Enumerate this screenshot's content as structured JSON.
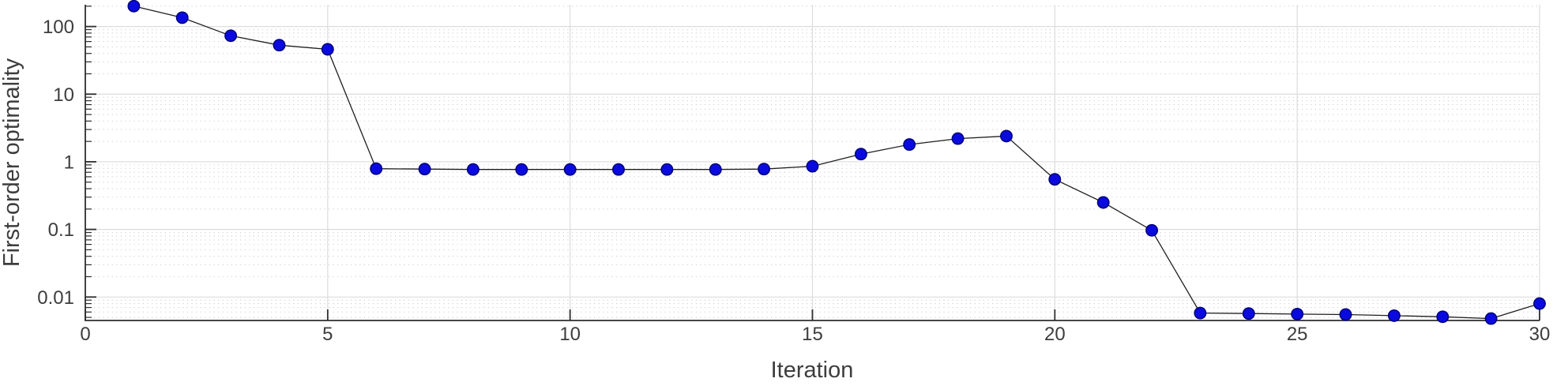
{
  "chart_data": {
    "type": "line",
    "title": "",
    "xlabel": "Iteration",
    "ylabel": "First-order optimality",
    "yscale": "log",
    "xlim": [
      0,
      30
    ],
    "ylim": [
      0.0045,
      210
    ],
    "grid": {
      "major": "solid",
      "minor": "dotted",
      "vertical_minor": false
    },
    "legend": null,
    "xticks": {
      "values": [
        0,
        5,
        10,
        15,
        20,
        25,
        30
      ],
      "labels": [
        "0",
        "5",
        "10",
        "15",
        "20",
        "25",
        "30"
      ]
    },
    "yticks": {
      "values": [
        100,
        10,
        1,
        0.1,
        0.01
      ],
      "labels": [
        "100",
        "10",
        "1",
        "0.1",
        "0.01"
      ]
    },
    "series": [
      {
        "name": "first-order-optimality",
        "marker": "filled-circle",
        "x": [
          1,
          2,
          3,
          4,
          5,
          6,
          7,
          8,
          9,
          10,
          11,
          12,
          13,
          14,
          15,
          16,
          17,
          18,
          19,
          20,
          21,
          22,
          23,
          24,
          25,
          26,
          27,
          28,
          29,
          30
        ],
        "y": [
          200,
          135,
          73,
          53,
          46,
          0.79,
          0.78,
          0.77,
          0.77,
          0.77,
          0.77,
          0.77,
          0.77,
          0.78,
          0.86,
          1.3,
          1.8,
          2.2,
          2.4,
          0.55,
          0.25,
          0.097,
          0.0058,
          0.0057,
          0.0056,
          0.0055,
          0.0053,
          0.0051,
          0.0048,
          0.008
        ]
      }
    ],
    "colors": {
      "marker_fill": "#0a0ae0",
      "marker_edge": "#00007a",
      "line": "#1f1f1f",
      "axis": "#2e2e2e",
      "text": "#3d3d3d",
      "grid_major": "#dcdcdc",
      "grid_minor": "#cfcfcf",
      "background": "#ffffff"
    }
  }
}
